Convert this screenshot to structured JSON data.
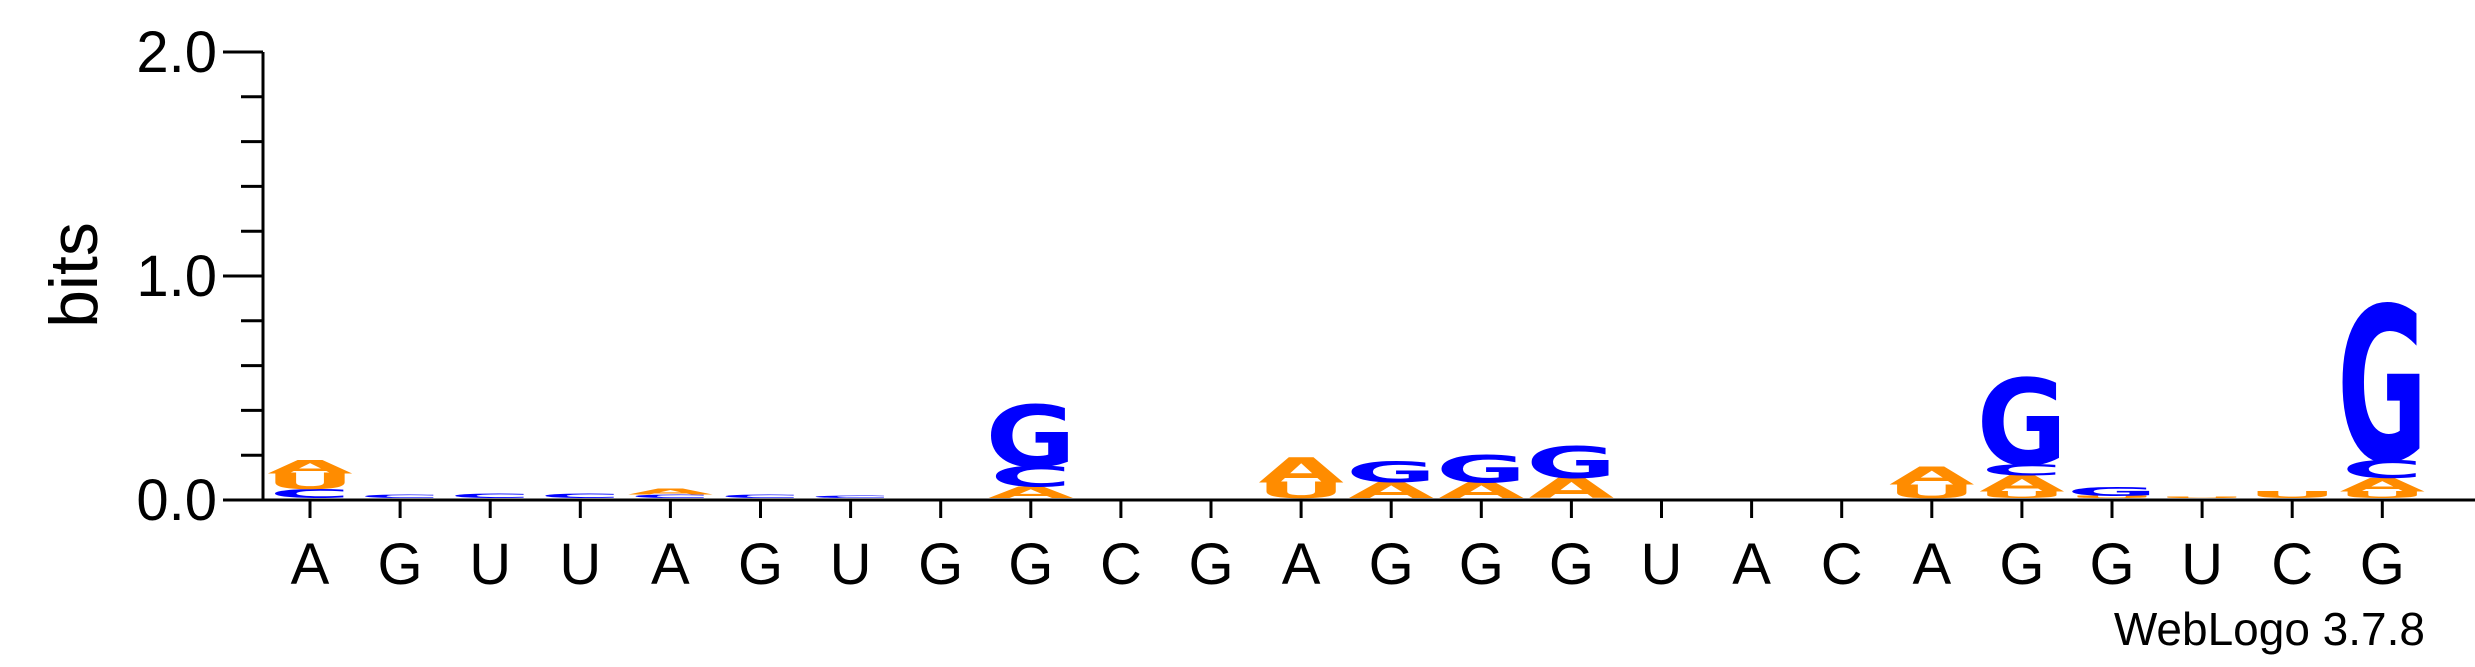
{
  "chart_data": {
    "type": "sequence-logo",
    "ylabel": "bits",
    "ylim": [
      0,
      2.0
    ],
    "yticks": [
      {
        "value": 0.0,
        "label": "0.0"
      },
      {
        "value": 1.0,
        "label": "1.0"
      },
      {
        "value": 2.0,
        "label": "2.0"
      }
    ],
    "positions": [
      "A",
      "G",
      "U",
      "U",
      "A",
      "G",
      "U",
      "G",
      "G",
      "C",
      "G",
      "A",
      "G",
      "G",
      "G",
      "U",
      "A",
      "C",
      "A",
      "G",
      "G",
      "U",
      "C",
      "G"
    ],
    "stacks": [
      [
        {
          "letter": "C",
          "bits": 0.04
        },
        {
          "letter": "U",
          "bits": 0.07
        },
        {
          "letter": "A",
          "bits": 0.06
        }
      ],
      [
        {
          "letter": "C",
          "bits": 0.015
        }
      ],
      [
        {
          "letter": "C",
          "bits": 0.02
        }
      ],
      [
        {
          "letter": "C",
          "bits": 0.02
        }
      ],
      [
        {
          "letter": "C",
          "bits": 0.015
        },
        {
          "letter": "A",
          "bits": 0.025
        }
      ],
      [
        {
          "letter": "C",
          "bits": 0.015
        }
      ],
      [
        {
          "letter": "C",
          "bits": 0.012
        }
      ],
      [],
      [
        {
          "letter": "A",
          "bits": 0.05
        },
        {
          "letter": "C",
          "bits": 0.09
        },
        {
          "letter": "G",
          "bits": 0.27
        }
      ],
      [],
      [],
      [
        {
          "letter": "U",
          "bits": 0.07
        },
        {
          "letter": "A",
          "bits": 0.11
        }
      ],
      [
        {
          "letter": "A",
          "bits": 0.07
        },
        {
          "letter": "G",
          "bits": 0.09
        }
      ],
      [
        {
          "letter": "A",
          "bits": 0.07
        },
        {
          "letter": "G",
          "bits": 0.12
        }
      ],
      [
        {
          "letter": "A",
          "bits": 0.09
        },
        {
          "letter": "G",
          "bits": 0.14
        }
      ],
      [],
      [],
      [],
      [
        {
          "letter": "U",
          "bits": 0.06
        },
        {
          "letter": "A",
          "bits": 0.08
        }
      ],
      [
        {
          "letter": "U",
          "bits": 0.03
        },
        {
          "letter": "A",
          "bits": 0.07
        },
        {
          "letter": "C",
          "bits": 0.05
        },
        {
          "letter": "G",
          "bits": 0.38
        }
      ],
      [
        {
          "letter": "U",
          "bits": 0.01
        },
        {
          "letter": "G",
          "bits": 0.04
        }
      ],
      [
        {
          "letter": "U",
          "bits": 0.005
        }
      ],
      [
        {
          "letter": "U",
          "bits": 0.03
        }
      ],
      [
        {
          "letter": "U",
          "bits": 0.03
        },
        {
          "letter": "A",
          "bits": 0.06
        },
        {
          "letter": "C",
          "bits": 0.08
        },
        {
          "letter": "G",
          "bits": 0.68
        }
      ]
    ],
    "colors": {
      "A": "#ff8c00",
      "U": "#ff8c00",
      "C": "#0000ff",
      "G": "#0000ff"
    }
  },
  "credit": "WebLogo 3.7.8"
}
